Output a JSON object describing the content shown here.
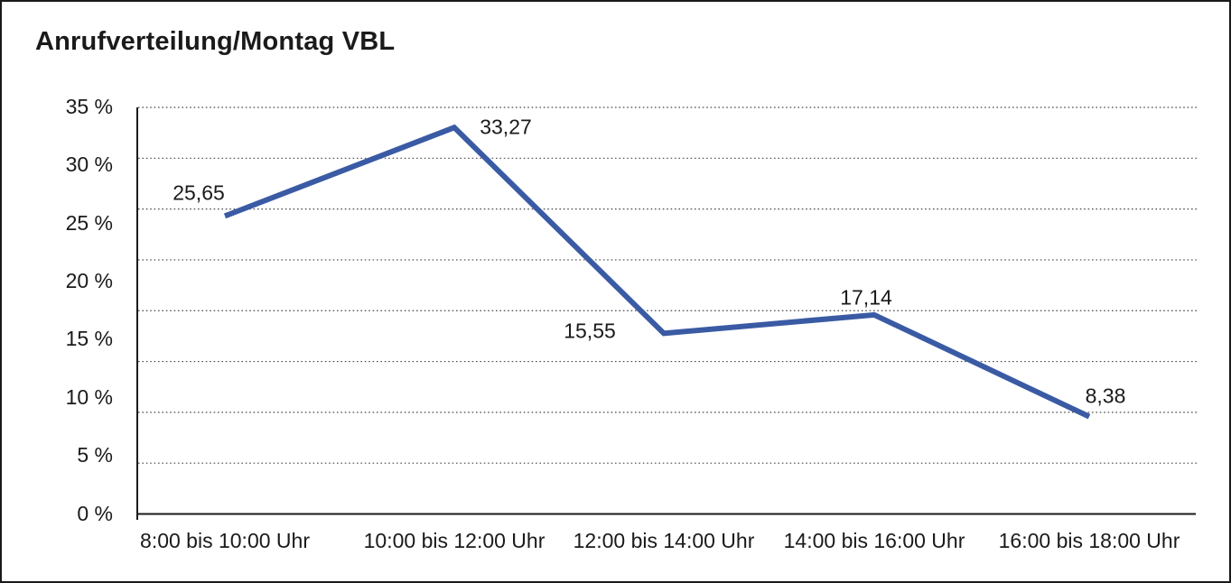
{
  "title": "Anrufverteilung/Montag VBL",
  "chart_data": {
    "type": "line",
    "title": "Anrufverteilung/Montag VBL",
    "categories": [
      "8:00 bis 10:00 Uhr",
      "10:00 bis 12:00 Uhr",
      "12:00 bis 14:00 Uhr",
      "14:00 bis 16:00 Uhr",
      "16:00 bis 18:00 Uhr"
    ],
    "values": [
      25.65,
      33.27,
      15.55,
      17.14,
      8.38
    ],
    "point_labels": [
      "25,65",
      "33,27",
      "15,55",
      "17,14",
      "8,38"
    ],
    "y_tick_labels": [
      "35 %",
      "30 %",
      "25 %",
      "20 %",
      "15 %",
      "10 %",
      "5 %",
      "0 %"
    ],
    "ylim": [
      0,
      35
    ],
    "y_unit": "%",
    "xlabel": "",
    "ylabel": "",
    "grid": "horizontal-dotted",
    "legend_position": "none"
  },
  "colors": {
    "line": "#3A5BA4",
    "text": "#1a1a1a",
    "grid": "#4a4a4a",
    "axis": "#1a1a1a",
    "background": "#ffffff",
    "frame_border": "#1a1a1a"
  }
}
